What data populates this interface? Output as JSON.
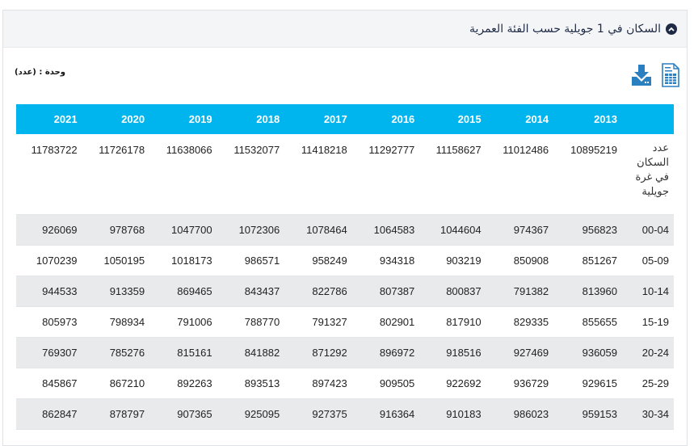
{
  "panel": {
    "title": "السكان في 1 جويلية حسب الفئة العمرية",
    "collapse_icon": "chevron-up-circle-icon"
  },
  "unit_label": "وحدة : (عدد)",
  "tools": [
    {
      "name": "download-icon"
    },
    {
      "name": "spreadsheet-icon"
    }
  ],
  "table": {
    "columns": [
      "2021",
      "2020",
      "2019",
      "2018",
      "2017",
      "2016",
      "2015",
      "2014",
      "2013",
      ""
    ],
    "total_row": {
      "label": "عدد السكان في غرة جويلية",
      "values": [
        "11783722",
        "11726178",
        "11638066",
        "11532077",
        "11418218",
        "11292777",
        "11158627",
        "11012486",
        "10895219"
      ]
    },
    "rows": [
      {
        "label": "00-04",
        "values": [
          "926069",
          "978768",
          "1047700",
          "1072306",
          "1078464",
          "1064583",
          "1044604",
          "974367",
          "956823"
        ]
      },
      {
        "label": "05-09",
        "values": [
          "1070239",
          "1050195",
          "1018173",
          "986571",
          "958249",
          "934318",
          "903219",
          "850908",
          "851267"
        ]
      },
      {
        "label": "10-14",
        "values": [
          "944533",
          "913359",
          "869465",
          "843437",
          "822786",
          "807387",
          "800837",
          "791382",
          "813960"
        ]
      },
      {
        "label": "15-19",
        "values": [
          "805973",
          "798934",
          "791006",
          "788770",
          "791327",
          "802901",
          "817910",
          "829335",
          "855655"
        ]
      },
      {
        "label": "20-24",
        "values": [
          "769307",
          "785276",
          "815161",
          "841882",
          "871292",
          "896972",
          "918516",
          "927469",
          "936059"
        ]
      },
      {
        "label": "25-29",
        "values": [
          "845867",
          "867210",
          "892263",
          "893513",
          "897423",
          "909505",
          "922692",
          "936729",
          "929615"
        ]
      },
      {
        "label": "30-34",
        "values": [
          "862847",
          "878797",
          "907365",
          "925095",
          "927375",
          "916364",
          "910183",
          "986023",
          "959153"
        ]
      }
    ]
  },
  "colors": {
    "header_bg": "#00b4ed",
    "title": "#1f2a44",
    "icon_blue": "#2a7fc1",
    "alt_row": "#e9eaec"
  }
}
